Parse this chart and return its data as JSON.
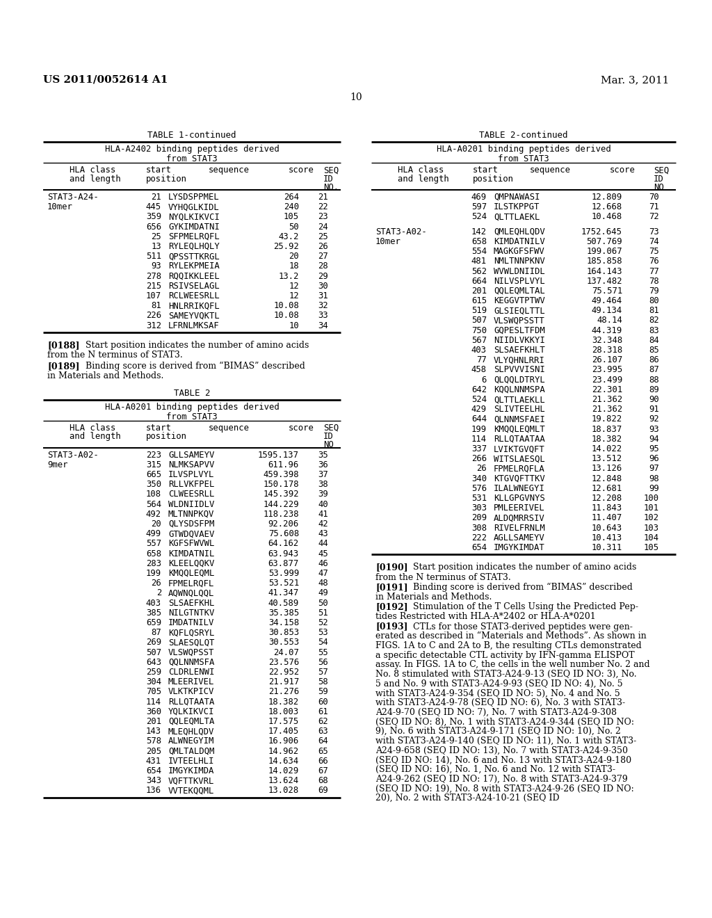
{
  "page_number": "10",
  "left_header": "US 2011/0052614 A1",
  "right_header": "Mar. 3, 2011",
  "table1_title": "TABLE 1-continued",
  "table1_subtitle1": "HLA-A2402 binding peptides derived",
  "table1_subtitle2": "from STAT3",
  "table1_rows": [
    [
      "21",
      "LYSDSPPMEL",
      "264",
      "21"
    ],
    [
      "445",
      "VYHQGLKIDL",
      "240",
      "22"
    ],
    [
      "359",
      "NYQLKIKVCI",
      "105",
      "23"
    ],
    [
      "656",
      "GYKIMDATNI",
      "50",
      "24"
    ],
    [
      "25",
      "SFPMELRQFL",
      "43.2",
      "25"
    ],
    [
      "13",
      "RYLEQLHQLY",
      "25.92",
      "26"
    ],
    [
      "511",
      "QPSSTTKRGL",
      "20",
      "27"
    ],
    [
      "93",
      "RYLEKPMEIA",
      "18",
      "28"
    ],
    [
      "278",
      "RQQIKKLEEL",
      "13.2",
      "29"
    ],
    [
      "215",
      "RSIVSELAGL",
      "12",
      "30"
    ],
    [
      "107",
      "RCLWEESRLL",
      "12",
      "31"
    ],
    [
      "81",
      "HNLRRIKQFL",
      "10.08",
      "32"
    ],
    [
      "226",
      "SAMEYVQKTL",
      "10.08",
      "33"
    ],
    [
      "312",
      "LFRNLMKSAF",
      "10",
      "34"
    ]
  ],
  "para188_bold": "[0188]",
  "para188_text": "    Start position indicates the number of amino acids from the N terminus of STAT3.",
  "para189_bold": "[0189]",
  "para189_text": "    Binding score is derived from “BIMAS” described in Materials and Methods.",
  "table2_title": "TABLE 2",
  "table2_subtitle1": "HLA-A0201 binding peptides derived",
  "table2_subtitle2": "from STAT3",
  "table2_rows": [
    [
      "223",
      "GLLSAMEYV",
      "1595.137",
      "35"
    ],
    [
      "315",
      "NLMKSAPVV",
      "611.96",
      "36"
    ],
    [
      "665",
      "ILVSPLVYL",
      "459.398",
      "37"
    ],
    [
      "350",
      "RLLVKFPEL",
      "150.178",
      "38"
    ],
    [
      "108",
      "CLWEESRLL",
      "145.392",
      "39"
    ],
    [
      "564",
      "WLDNIIDLV",
      "144.229",
      "40"
    ],
    [
      "492",
      "MLTNNPKQV",
      "118.238",
      "41"
    ],
    [
      "20",
      "QLYSDSFPM",
      "92.206",
      "42"
    ],
    [
      "499",
      "GTWDQVAEV",
      "75.608",
      "43"
    ],
    [
      "557",
      "KGFSFWVWL",
      "64.162",
      "44"
    ],
    [
      "658",
      "KIMDATNIL",
      "63.943",
      "45"
    ],
    [
      "283",
      "KLEELQQKV",
      "63.877",
      "46"
    ],
    [
      "199",
      "KMQQLEQML",
      "53.999",
      "47"
    ],
    [
      "26",
      "FPMELRQFL",
      "53.521",
      "48"
    ],
    [
      "2",
      "AQWNQLQQL",
      "41.347",
      "49"
    ],
    [
      "403",
      "SLSAEFKHL",
      "40.589",
      "50"
    ],
    [
      "385",
      "NILGTNTKV",
      "35.385",
      "51"
    ],
    [
      "659",
      "IMDATNILV",
      "34.158",
      "52"
    ],
    [
      "87",
      "KQFLQSRYL",
      "30.853",
      "53"
    ],
    [
      "269",
      "SLAESQLQT",
      "30.553",
      "54"
    ],
    [
      "507",
      "VLSWQPSST",
      "24.07",
      "55"
    ],
    [
      "643",
      "QQLNNMSFA",
      "23.576",
      "56"
    ],
    [
      "259",
      "CLDRLENWI",
      "22.952",
      "57"
    ],
    [
      "304",
      "MLEERIVEL",
      "21.917",
      "58"
    ],
    [
      "705",
      "VLKTKPICV",
      "21.276",
      "59"
    ],
    [
      "114",
      "RLLQTAATA",
      "18.382",
      "60"
    ],
    [
      "360",
      "YQLKIKVCI",
      "18.003",
      "61"
    ],
    [
      "201",
      "QQLEQMLTA",
      "17.575",
      "62"
    ],
    [
      "143",
      "MLEQHLQDV",
      "17.405",
      "63"
    ],
    [
      "578",
      "ALWNEGYIM",
      "16.906",
      "64"
    ],
    [
      "205",
      "QMLTALDQM",
      "14.962",
      "65"
    ],
    [
      "431",
      "IVTEELHLI",
      "14.634",
      "66"
    ],
    [
      "654",
      "IMGYKIMDA",
      "14.029",
      "67"
    ],
    [
      "343",
      "VQFTTKVRL",
      "13.624",
      "68"
    ],
    [
      "136",
      "VVTEKQQML",
      "13.028",
      "69"
    ]
  ],
  "table2c_title": "TABLE 2-continued",
  "table2c_subtitle1": "HLA-A0201 binding peptides derived",
  "table2c_subtitle2": "from STAT3",
  "table2c_rows_9mer_end": [
    [
      "469",
      "QMPNAWASI",
      "12.809",
      "70"
    ],
    [
      "597",
      "ILSTKPPGT",
      "12.668",
      "71"
    ],
    [
      "524",
      "QLTTLAEKL",
      "10.468",
      "72"
    ]
  ],
  "table2c_rows_10mer": [
    [
      "142",
      "QMLEQHLQDV",
      "1752.645",
      "73"
    ],
    [
      "658",
      "KIMDATNILV",
      "507.769",
      "74"
    ],
    [
      "554",
      "MAGKGFSFWV",
      "199.067",
      "75"
    ],
    [
      "481",
      "NMLTNNPKNV",
      "185.858",
      "76"
    ],
    [
      "562",
      "WVWLDNIIDL",
      "164.143",
      "77"
    ],
    [
      "664",
      "NILVSPLVYL",
      "137.482",
      "78"
    ],
    [
      "201",
      "QQLEQMLTAL",
      "75.571",
      "79"
    ],
    [
      "615",
      "KEGGVTPTWV",
      "49.464",
      "80"
    ],
    [
      "519",
      "GLSIEQLTTL",
      "49.134",
      "81"
    ],
    [
      "507",
      "VLSWQPSSTT",
      "48.14",
      "82"
    ],
    [
      "750",
      "GQPESLTFDM",
      "44.319",
      "83"
    ],
    [
      "567",
      "NIIDLVKKYI",
      "32.348",
      "84"
    ],
    [
      "403",
      "SLSAEFKHLT",
      "28.318",
      "85"
    ],
    [
      "77",
      "VLYQHNLRRI",
      "26.107",
      "86"
    ],
    [
      "458",
      "SLPVVVISNI",
      "23.995",
      "87"
    ],
    [
      "6",
      "QLQQLDTRYL",
      "23.499",
      "88"
    ],
    [
      "642",
      "KQQLNNMSPA",
      "22.301",
      "89"
    ],
    [
      "524",
      "QLTTLAEKLL",
      "21.362",
      "90"
    ],
    [
      "429",
      "SLIVTEELHL",
      "21.362",
      "91"
    ],
    [
      "644",
      "QLNNMSFAEI",
      "19.822",
      "92"
    ],
    [
      "199",
      "KMQQLEQMLT",
      "18.837",
      "93"
    ],
    [
      "114",
      "RLLQTAATAA",
      "18.382",
      "94"
    ],
    [
      "337",
      "LVIKTGVQFT",
      "14.022",
      "95"
    ],
    [
      "266",
      "WITSLAESQL",
      "13.512",
      "96"
    ],
    [
      "26",
      "FPMELRQFLA",
      "13.126",
      "97"
    ],
    [
      "340",
      "KTGVQFTTKV",
      "12.848",
      "98"
    ],
    [
      "576",
      "ILALWNEGYI",
      "12.681",
      "99"
    ],
    [
      "531",
      "KLLGPGVNYS",
      "12.208",
      "100"
    ],
    [
      "303",
      "PMLEERIVEL",
      "11.843",
      "101"
    ],
    [
      "209",
      "ALDQMRRSIV",
      "11.407",
      "102"
    ],
    [
      "308",
      "RIVELFRNLM",
      "10.643",
      "103"
    ],
    [
      "222",
      "AGLLSAMEYV",
      "10.413",
      "104"
    ],
    [
      "654",
      "IMGYKIMDAT",
      "10.311",
      "105"
    ]
  ],
  "para190_bold": "[0190]",
  "para190_text": "    Start position indicates the number of amino acids from the N terminus of STAT3.",
  "para191_bold": "[0191]",
  "para191_text": "    Binding score is derived from “BIMAS” described in Materials and Methods.",
  "para192_bold": "[0192]",
  "para192_text": "    Stimulation of the T Cells Using the Predicted Pep-tides Restricted with HLA-A*2402 or HLA-A*0201",
  "para193_bold": "[0193]",
  "para193_lines": [
    "    CTLs for those STAT3-derived peptides were gen-",
    "erated as described in “Materials and Methods”. As shown in",
    "FIGS. 1A to C and 2A to B, the resulting CTLs demonstrated",
    "a specific detectable CTL activity by IFN-gamma ELISPOT",
    "assay. In FIGS. 1A to C, the cells in the well number No. 2 and",
    "No. 8 stimulated with STAT3-A24-9-13 (SEQ ID NO: 3), No.",
    "5 and No. 9 with STAT3-A24-9-93 (SEQ ID NO: 4), No. 5",
    "with STAT3-A24-9-354 (SEQ ID NO: 5), No. 4 and No. 5",
    "with STAT3-A24-9-78 (SEQ ID NO: 6), No. 3 with STAT3-",
    "A24-9-70 (SEQ ID NO: 7), No. 7 with STAT3-A24-9-308",
    "(SEQ ID NO: 8), No. 1 with STAT3-A24-9-344 (SEQ ID NO:",
    "9), No. 6 with STAT3-A24-9-171 (SEQ ID NO: 10), No. 2",
    "with STAT3-A24-9-140 (SEQ ID NO: 11), No. 1 with STAT3-",
    "A24-9-658 (SEQ ID NO: 13), No. 7 with STAT3-A24-9-350",
    "(SEQ ID NO: 14), No. 6 and No. 13 with STAT3-A24-9-180",
    "(SEQ ID NO: 16), No. 1, No. 6 and No. 12 with STAT3-",
    "A24-9-262 (SEQ ID NO: 17), No. 8 with STAT3-A24-9-379",
    "(SEQ ID NO: 19), No. 8 with STAT3-A24-9-26 (SEQ ID NO:",
    "20), No. 2 with STAT3-A24-10-21 (SEQ ID"
  ]
}
